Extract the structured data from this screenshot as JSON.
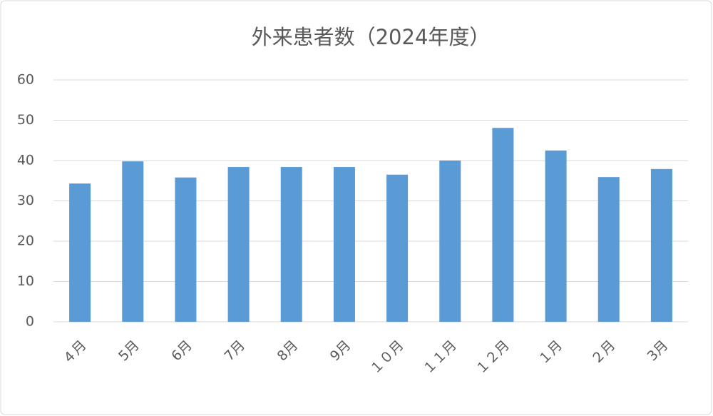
{
  "chart_data": {
    "type": "bar",
    "title": "外来患者数（2024年度）",
    "categories": [
      "４月",
      "5月",
      "6月",
      "7月",
      "8月",
      "9月",
      "１０月",
      "１１月",
      "１２月",
      "１月",
      "２月",
      "3月"
    ],
    "values": [
      34.3,
      39.8,
      35.8,
      38.4,
      38.4,
      38.4,
      36.5,
      40,
      48.1,
      42.5,
      35.9,
      37.9
    ],
    "color": "#5b9bd5",
    "ylim": [
      0,
      60
    ],
    "yticks": [
      0,
      10,
      20,
      30,
      40,
      50,
      60
    ],
    "grid": true
  }
}
